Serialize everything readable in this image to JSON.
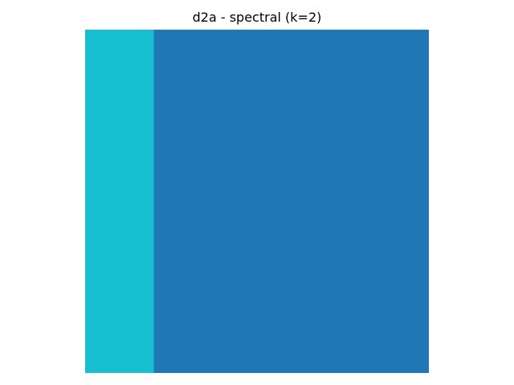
{
  "chart_data": {
    "type": "heatmap",
    "title": "d2a - spectral (k=2)",
    "xlabel": "",
    "ylabel": "",
    "axes_visible": false,
    "grid": false,
    "values": [
      [
        1,
        0,
        0,
        0,
        0
      ]
    ],
    "colors": {
      "0": "#1f77b4",
      "1": "#17becf"
    }
  }
}
